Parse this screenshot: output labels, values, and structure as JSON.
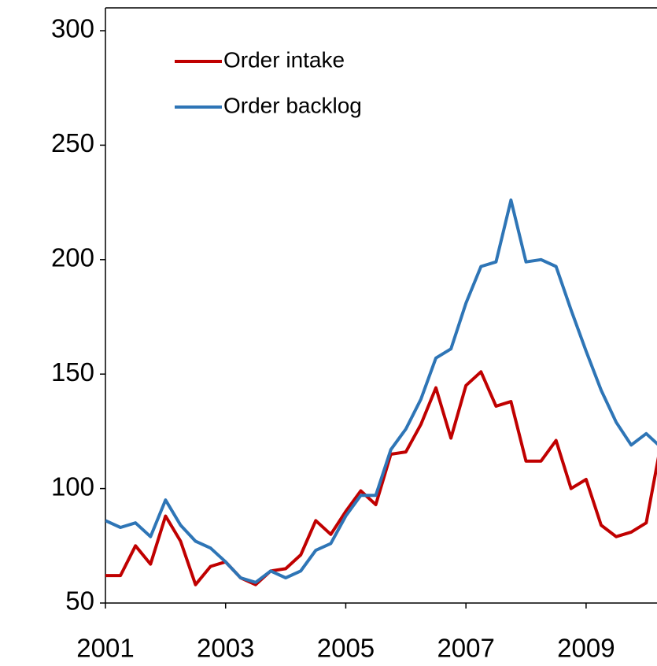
{
  "chart_data": {
    "type": "line",
    "x": [
      2001,
      2001.25,
      2001.5,
      2001.75,
      2002,
      2002.25,
      2002.5,
      2002.75,
      2003,
      2003.25,
      2003.5,
      2003.75,
      2004,
      2004.25,
      2004.5,
      2004.75,
      2005,
      2005.25,
      2005.5,
      2005.75,
      2006,
      2006.25,
      2006.5,
      2006.75,
      2007,
      2007.25,
      2007.5,
      2007.75,
      2008,
      2008.25,
      2008.5,
      2008.75,
      2009,
      2009.25,
      2009.5,
      2009.75,
      2010,
      2010.25
    ],
    "series": [
      {
        "name": "Order intake",
        "color": "#c00000",
        "values": [
          62,
          62,
          75,
          67,
          88,
          77,
          58,
          66,
          68,
          61,
          58,
          64,
          65,
          71,
          86,
          80,
          90,
          99,
          93,
          115,
          116,
          128,
          144,
          122,
          145,
          151,
          136,
          138,
          112,
          112,
          121,
          100,
          104,
          84,
          79,
          81,
          85,
          120
        ]
      },
      {
        "name": "Order backlog",
        "color": "#2e75b6",
        "values": [
          86,
          83,
          85,
          79,
          95,
          84,
          77,
          74,
          68,
          61,
          59,
          64,
          61,
          64,
          73,
          76,
          88,
          97,
          97,
          117,
          126,
          139,
          157,
          161,
          181,
          197,
          199,
          226,
          199,
          200,
          197,
          178,
          160,
          143,
          129,
          119,
          124,
          118
        ]
      }
    ],
    "xlim": [
      2001,
      2010.18
    ],
    "xticks": [
      2001,
      2003,
      2005,
      2007,
      2009
    ],
    "ylim": [
      50,
      300
    ],
    "yticks": [
      50,
      100,
      150,
      200,
      250,
      300
    ],
    "legend": "upper-left"
  }
}
